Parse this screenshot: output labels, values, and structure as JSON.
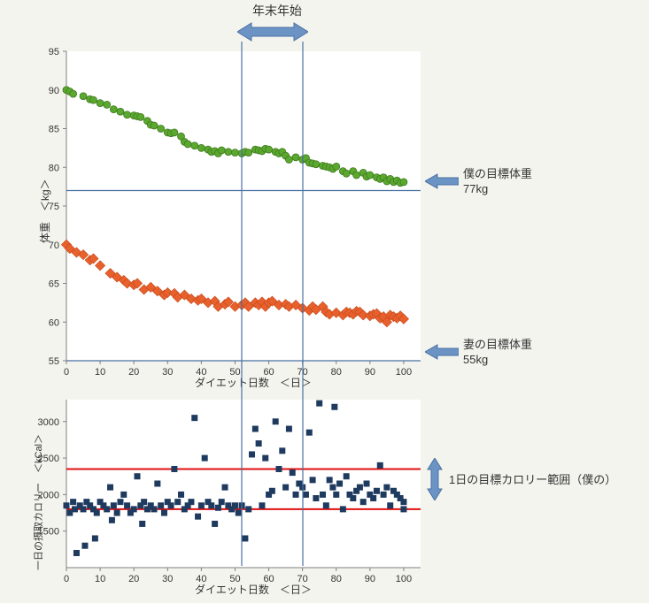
{
  "background_color": "#f4f4ee",
  "top_annotation": {
    "label": "年末年始",
    "band_x_start": 52,
    "band_x_end": 70,
    "arrow_color": "#6b93c4",
    "arrow_stroke": "#4a72a3"
  },
  "weight_chart": {
    "type": "scatter",
    "xlim": [
      0,
      105
    ],
    "ylim": [
      55,
      95
    ],
    "xtick_start": 0,
    "xtick_step": 10,
    "xtick_end": 100,
    "ytick_start": 55,
    "ytick_step": 5,
    "ytick_end": 95,
    "xlabel": "ダイエット日数　＜日＞",
    "ylabel": "体重　＜kg＞",
    "label_fontsize": 12,
    "tick_fontsize": 11,
    "axis_color": "#7f7f7f",
    "plot_bg": "#ffffff",
    "series": [
      {
        "name": "me",
        "marker": "circle",
        "color": "#5ba82f",
        "edge": "#3f7a20",
        "size": 8,
        "points": [
          [
            0,
            90
          ],
          [
            1,
            89.8
          ],
          [
            2,
            89.5
          ],
          [
            5,
            89.2
          ],
          [
            7,
            88.8
          ],
          [
            8,
            88.7
          ],
          [
            10,
            88.3
          ],
          [
            12,
            88.1
          ],
          [
            14,
            87.5
          ],
          [
            16,
            87.2
          ],
          [
            18,
            86.8
          ],
          [
            20,
            86.7
          ],
          [
            21,
            86.6
          ],
          [
            22,
            86.5
          ],
          [
            24,
            86.0
          ],
          [
            25,
            85.5
          ],
          [
            26,
            85.4
          ],
          [
            28,
            85.0
          ],
          [
            30,
            84.5
          ],
          [
            31,
            84.4
          ],
          [
            32,
            84.5
          ],
          [
            34,
            84.0
          ],
          [
            35,
            83.3
          ],
          [
            36,
            83.0
          ],
          [
            38,
            82.8
          ],
          [
            40,
            82.5
          ],
          [
            42,
            82.3
          ],
          [
            43,
            82.0
          ],
          [
            44,
            82.1
          ],
          [
            45,
            81.8
          ],
          [
            46,
            82.2
          ],
          [
            48,
            82.0
          ],
          [
            50,
            81.9
          ],
          [
            52,
            81.8
          ],
          [
            53,
            82.0
          ],
          [
            54,
            81.9
          ],
          [
            56,
            82.3
          ],
          [
            57,
            82.2
          ],
          [
            58,
            82.1
          ],
          [
            59,
            82.4
          ],
          [
            60,
            82.3
          ],
          [
            62,
            82.0
          ],
          [
            63,
            81.8
          ],
          [
            64,
            82.0
          ],
          [
            65,
            81.5
          ],
          [
            66,
            81.0
          ],
          [
            68,
            81.3
          ],
          [
            70,
            81.0
          ],
          [
            71,
            81.2
          ],
          [
            72,
            80.6
          ],
          [
            73,
            80.5
          ],
          [
            74,
            80.4
          ],
          [
            76,
            80.2
          ],
          [
            77,
            80.1
          ],
          [
            78,
            80.0
          ],
          [
            79,
            79.8
          ],
          [
            80,
            80.1
          ],
          [
            82,
            79.5
          ],
          [
            83,
            79.2
          ],
          [
            85,
            79.5
          ],
          [
            86,
            79.0
          ],
          [
            88,
            79.3
          ],
          [
            89,
            78.8
          ],
          [
            90,
            79.0
          ],
          [
            92,
            78.7
          ],
          [
            93,
            78.5
          ],
          [
            94,
            78.7
          ],
          [
            95,
            78.2
          ],
          [
            96,
            78.5
          ],
          [
            97,
            78.1
          ],
          [
            98,
            78.3
          ],
          [
            99,
            78.0
          ],
          [
            100,
            78.1
          ]
        ],
        "target_line": 77,
        "target_label_1": "僕の目標体重",
        "target_label_2": "77kg",
        "target_line_color": "#4a72a3"
      },
      {
        "name": "wife",
        "marker": "diamond",
        "color": "#e8602c",
        "edge": "#c44a1c",
        "size": 9,
        "points": [
          [
            0,
            70
          ],
          [
            1,
            69.5
          ],
          [
            3,
            69.0
          ],
          [
            5,
            68.7
          ],
          [
            7,
            68.0
          ],
          [
            8,
            68.2
          ],
          [
            10,
            67.3
          ],
          [
            13,
            66.3
          ],
          [
            15,
            65.8
          ],
          [
            17,
            65.4
          ],
          [
            18,
            65.0
          ],
          [
            20,
            64.8
          ],
          [
            21,
            65.0
          ],
          [
            23,
            64.2
          ],
          [
            25,
            64.5
          ],
          [
            27,
            64.0
          ],
          [
            29,
            63.5
          ],
          [
            30,
            63.8
          ],
          [
            32,
            63.7
          ],
          [
            33,
            63.2
          ],
          [
            35,
            63.5
          ],
          [
            37,
            63.0
          ],
          [
            39,
            62.8
          ],
          [
            40,
            63.0
          ],
          [
            42,
            62.5
          ],
          [
            44,
            62.7
          ],
          [
            45,
            62.0
          ],
          [
            47,
            62.3
          ],
          [
            48,
            62.6
          ],
          [
            50,
            62.0
          ],
          [
            52,
            62.2
          ],
          [
            53,
            62.5
          ],
          [
            54,
            62.0
          ],
          [
            56,
            62.5
          ],
          [
            57,
            62.2
          ],
          [
            58,
            62.6
          ],
          [
            59,
            62.0
          ],
          [
            60,
            62.5
          ],
          [
            61,
            62.7
          ],
          [
            63,
            62.2
          ],
          [
            65,
            62.3
          ],
          [
            66,
            62.0
          ],
          [
            68,
            62.2
          ],
          [
            70,
            61.8
          ],
          [
            72,
            61.5
          ],
          [
            73,
            62.0
          ],
          [
            74,
            61.6
          ],
          [
            76,
            62.0
          ],
          [
            77,
            61.3
          ],
          [
            78,
            61.0
          ],
          [
            80,
            61.2
          ],
          [
            82,
            60.9
          ],
          [
            83,
            61.3
          ],
          [
            84,
            61.2
          ],
          [
            85,
            61.0
          ],
          [
            86,
            61.4
          ],
          [
            87,
            61.3
          ],
          [
            88,
            60.9
          ],
          [
            90,
            60.8
          ],
          [
            91,
            61.0
          ],
          [
            92,
            61.1
          ],
          [
            93,
            60.5
          ],
          [
            94,
            60.7
          ],
          [
            95,
            60.0
          ],
          [
            96,
            60.9
          ],
          [
            97,
            60.7
          ],
          [
            98,
            60.5
          ],
          [
            99,
            60.8
          ],
          [
            100,
            60.4
          ]
        ],
        "target_line": 55,
        "target_label_1": "妻の目標体重",
        "target_label_2": "55kg",
        "target_line_color": "#4a72a3"
      }
    ]
  },
  "calorie_chart": {
    "type": "scatter",
    "xlim": [
      0,
      105
    ],
    "ylim": [
      1000,
      3300
    ],
    "xtick_start": 0,
    "xtick_step": 10,
    "xtick_end": 100,
    "yticks": [
      1500,
      2000,
      2500,
      3000
    ],
    "xlabel": "ダイエット日数　＜日＞",
    "ylabel": "一日の摂取カロリー　＜kCal＞",
    "label_fontsize": 12,
    "tick_fontsize": 11,
    "axis_color": "#7f7f7f",
    "plot_bg": "#ffffff",
    "marker": "square",
    "marker_color": "#1f3a5f",
    "marker_size": 7,
    "target_band": {
      "low": 1800,
      "high": 2350,
      "color": "#e01010",
      "width": 2
    },
    "target_arrow_color": "#6b93c4",
    "target_arrow_stroke": "#4a72a3",
    "target_label": "1日の目標カロリー範囲（僕の）",
    "points": [
      [
        0,
        1850
      ],
      [
        1,
        1750
      ],
      [
        2,
        1900
      ],
      [
        2.5,
        1800
      ],
      [
        3,
        1200
      ],
      [
        4,
        1850
      ],
      [
        5,
        1800
      ],
      [
        5.5,
        1300
      ],
      [
        6,
        1900
      ],
      [
        7,
        1850
      ],
      [
        8,
        1800
      ],
      [
        8.5,
        1400
      ],
      [
        9,
        1750
      ],
      [
        10,
        1900
      ],
      [
        11,
        1850
      ],
      [
        12,
        1800
      ],
      [
        13,
        2100
      ],
      [
        13.5,
        1650
      ],
      [
        14,
        1850
      ],
      [
        15,
        1750
      ],
      [
        16,
        1900
      ],
      [
        17,
        2000
      ],
      [
        18,
        1850
      ],
      [
        19,
        1750
      ],
      [
        20,
        1800
      ],
      [
        21,
        2250
      ],
      [
        22,
        1850
      ],
      [
        22.5,
        1600
      ],
      [
        23,
        1900
      ],
      [
        24,
        1800
      ],
      [
        25,
        1850
      ],
      [
        26,
        1800
      ],
      [
        27,
        2150
      ],
      [
        28,
        1850
      ],
      [
        29,
        1750
      ],
      [
        30,
        1900
      ],
      [
        31,
        1850
      ],
      [
        32,
        2350
      ],
      [
        33,
        1900
      ],
      [
        34,
        2000
      ],
      [
        35,
        1800
      ],
      [
        36,
        1850
      ],
      [
        37,
        1900
      ],
      [
        38,
        3050
      ],
      [
        39,
        1700
      ],
      [
        40,
        1850
      ],
      [
        41,
        2500
      ],
      [
        42,
        1900
      ],
      [
        43,
        1850
      ],
      [
        44,
        1600
      ],
      [
        45,
        1820
      ],
      [
        46,
        1900
      ],
      [
        47,
        2100
      ],
      [
        48,
        1850
      ],
      [
        49,
        1800
      ],
      [
        50,
        1850
      ],
      [
        51,
        1750
      ],
      [
        52,
        1850
      ],
      [
        53,
        1400
      ],
      [
        54,
        1800
      ],
      [
        55,
        2550
      ],
      [
        56,
        2900
      ],
      [
        57,
        2700
      ],
      [
        58,
        1850
      ],
      [
        59,
        2500
      ],
      [
        60,
        2000
      ],
      [
        61,
        2050
      ],
      [
        62,
        3000
      ],
      [
        63,
        2350
      ],
      [
        64,
        2600
      ],
      [
        65,
        2100
      ],
      [
        66,
        2900
      ],
      [
        67,
        2300
      ],
      [
        68,
        2000
      ],
      [
        69,
        2150
      ],
      [
        70,
        2100
      ],
      [
        71,
        2000
      ],
      [
        72,
        2850
      ],
      [
        73,
        2200
      ],
      [
        74,
        1950
      ],
      [
        75,
        3250
      ],
      [
        76,
        2000
      ],
      [
        77,
        1850
      ],
      [
        78,
        2200
      ],
      [
        79,
        2100
      ],
      [
        79.5,
        3200
      ],
      [
        80,
        2000
      ],
      [
        81,
        2150
      ],
      [
        82,
        1800
      ],
      [
        83,
        2250
      ],
      [
        84,
        2000
      ],
      [
        85,
        1950
      ],
      [
        86,
        2050
      ],
      [
        87,
        2100
      ],
      [
        88,
        1900
      ],
      [
        89,
        2150
      ],
      [
        90,
        2000
      ],
      [
        91,
        1950
      ],
      [
        92,
        2050
      ],
      [
        93,
        2400
      ],
      [
        94,
        2000
      ],
      [
        95,
        2100
      ],
      [
        96,
        1850
      ],
      [
        97,
        2050
      ],
      [
        98,
        2000
      ],
      [
        99,
        1950
      ],
      [
        100,
        1900
      ],
      [
        100,
        1800
      ]
    ]
  },
  "arrow_head_annotation_color": "#4a72a3"
}
